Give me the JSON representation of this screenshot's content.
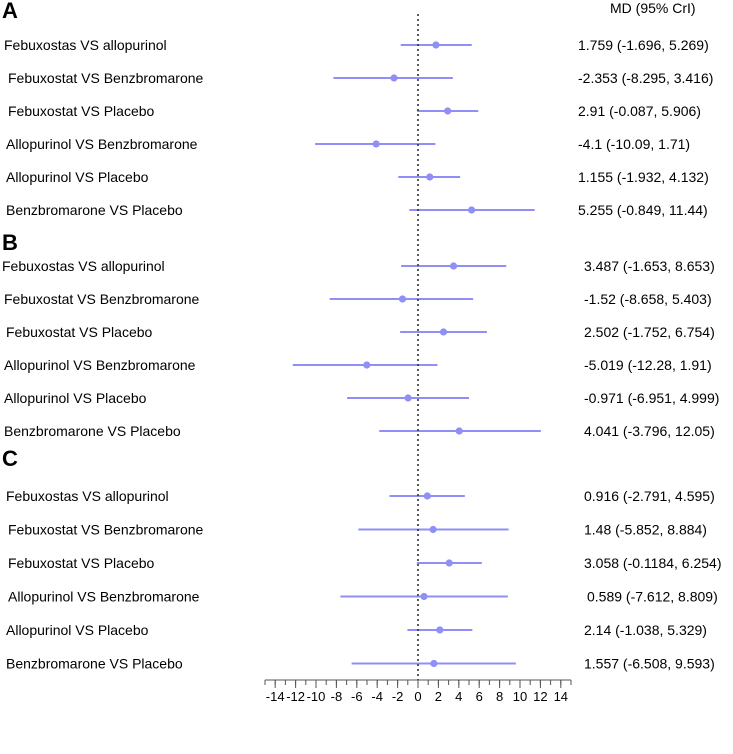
{
  "chart_data": {
    "type": "forest",
    "header": "MD (95% CrI)",
    "colors": {
      "interval": "#8f8ff5",
      "point": "#8f8ff5",
      "axis": "#555555",
      "reference": "#333333"
    },
    "xlim": [
      -15,
      15
    ],
    "x_ticks": [
      -14,
      -12,
      -10,
      -8,
      -6,
      -4,
      -2,
      0,
      2,
      4,
      6,
      8,
      10,
      12,
      14
    ],
    "reference_line": 0,
    "panels": [
      {
        "label": "A",
        "rows": [
          {
            "label": "Febuxostas VS allopurinol",
            "md": 1.759,
            "lower": -1.696,
            "upper": 5.269,
            "ci_text": "1.759 (-1.696, 5.269)"
          },
          {
            "label": "Febuxostat VS Benzbromarone",
            "md": -2.353,
            "lower": -8.295,
            "upper": 3.416,
            "ci_text": "-2.353 (-8.295, 3.416)"
          },
          {
            "label": "Febuxostat VS Placebo",
            "md": 2.91,
            "lower": -0.087,
            "upper": 5.906,
            "ci_text": "2.91 (-0.087, 5.906)"
          },
          {
            "label": "Allopurinol VS Benzbromarone",
            "md": -4.1,
            "lower": -10.09,
            "upper": 1.71,
            "ci_text": "-4.1 (-10.09, 1.71)"
          },
          {
            "label": "Allopurinol VS Placebo",
            "md": 1.155,
            "lower": -1.932,
            "upper": 4.132,
            "ci_text": "1.155 (-1.932, 4.132)"
          },
          {
            "label": "Benzbromarone VS Placebo",
            "md": 5.255,
            "lower": -0.849,
            "upper": 11.44,
            "ci_text": "5.255 (-0.849, 11.44)"
          }
        ]
      },
      {
        "label": "B",
        "rows": [
          {
            "label": "Febuxostas VS allopurinol",
            "md": 3.487,
            "lower": -1.653,
            "upper": 8.653,
            "ci_text": "3.487 (-1.653, 8.653)"
          },
          {
            "label": "Febuxostat VS Benzbromarone",
            "md": -1.52,
            "lower": -8.658,
            "upper": 5.403,
            "ci_text": "-1.52 (-8.658, 5.403)"
          },
          {
            "label": "Febuxostat VS Placebo",
            "md": 2.502,
            "lower": -1.752,
            "upper": 6.754,
            "ci_text": "2.502 (-1.752, 6.754)"
          },
          {
            "label": "Allopurinol VS Benzbromarone",
            "md": -5.019,
            "lower": -12.28,
            "upper": 1.91,
            "ci_text": "-5.019 (-12.28, 1.91)"
          },
          {
            "label": "Allopurinol VS Placebo",
            "md": -0.971,
            "lower": -6.951,
            "upper": 4.999,
            "ci_text": "-0.971 (-6.951, 4.999)"
          },
          {
            "label": "Benzbromarone VS Placebo",
            "md": 4.041,
            "lower": -3.796,
            "upper": 12.05,
            "ci_text": "4.041 (-3.796, 12.05)"
          }
        ]
      },
      {
        "label": "C",
        "rows": [
          {
            "label": "Febuxostas VS allopurinol",
            "md": 0.916,
            "lower": -2.791,
            "upper": 4.595,
            "ci_text": "0.916 (-2.791, 4.595)"
          },
          {
            "label": "Febuxostat VS Benzbromarone",
            "md": 1.48,
            "lower": -5.852,
            "upper": 8.884,
            "ci_text": "1.48 (-5.852, 8.884)"
          },
          {
            "label": "Febuxostat VS Placebo",
            "md": 3.058,
            "lower": -0.1184,
            "upper": 6.254,
            "ci_text": "3.058 (-0.1184, 6.254)"
          },
          {
            "label": "Allopurinol VS Benzbromarone",
            "md": 0.589,
            "lower": -7.612,
            "upper": 8.809,
            "ci_text": "0.589 (-7.612, 8.809)"
          },
          {
            "label": "Allopurinol VS Placebo",
            "md": 2.14,
            "lower": -1.038,
            "upper": 5.329,
            "ci_text": "2.14 (-1.038, 5.329)"
          },
          {
            "label": "Benzbromarone VS Placebo",
            "md": 1.557,
            "lower": -6.508,
            "upper": 9.593,
            "ci_text": "1.557 (-6.508, 9.593)"
          }
        ]
      }
    ]
  }
}
